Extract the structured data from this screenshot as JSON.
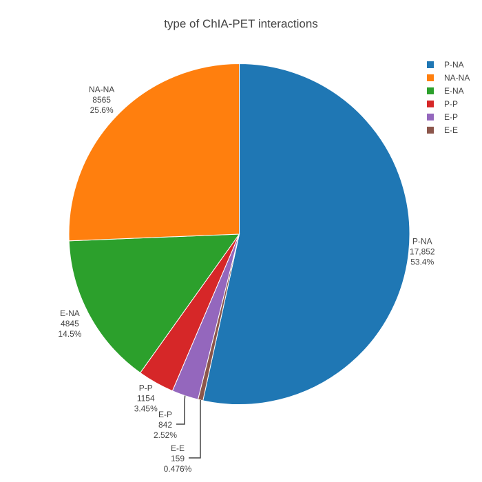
{
  "chart_data": {
    "type": "pie",
    "title": "type of ChIA-PET interactions",
    "direction": "clockwise",
    "slices": [
      {
        "label": "P-NA",
        "value": 17852,
        "value_text": "17,852",
        "percent_text": "53.4%",
        "color": "#1f77b4"
      },
      {
        "label": "E-E",
        "value": 159,
        "value_text": "159",
        "percent_text": "0.476%",
        "color": "#8c564b"
      },
      {
        "label": "E-P",
        "value": 842,
        "value_text": "842",
        "percent_text": "2.52%",
        "color": "#9467bd"
      },
      {
        "label": "P-P",
        "value": 1154,
        "value_text": "1154",
        "percent_text": "3.45%",
        "color": "#d62728"
      },
      {
        "label": "E-NA",
        "value": 4845,
        "value_text": "4845",
        "percent_text": "14.5%",
        "color": "#2ca02c"
      },
      {
        "label": "NA-NA",
        "value": 8565,
        "value_text": "8565",
        "percent_text": "25.6%",
        "color": "#ff7f0e"
      }
    ],
    "legend": {
      "position": "top-right",
      "order": [
        "P-NA",
        "NA-NA",
        "E-NA",
        "P-P",
        "E-P",
        "E-E"
      ]
    }
  }
}
